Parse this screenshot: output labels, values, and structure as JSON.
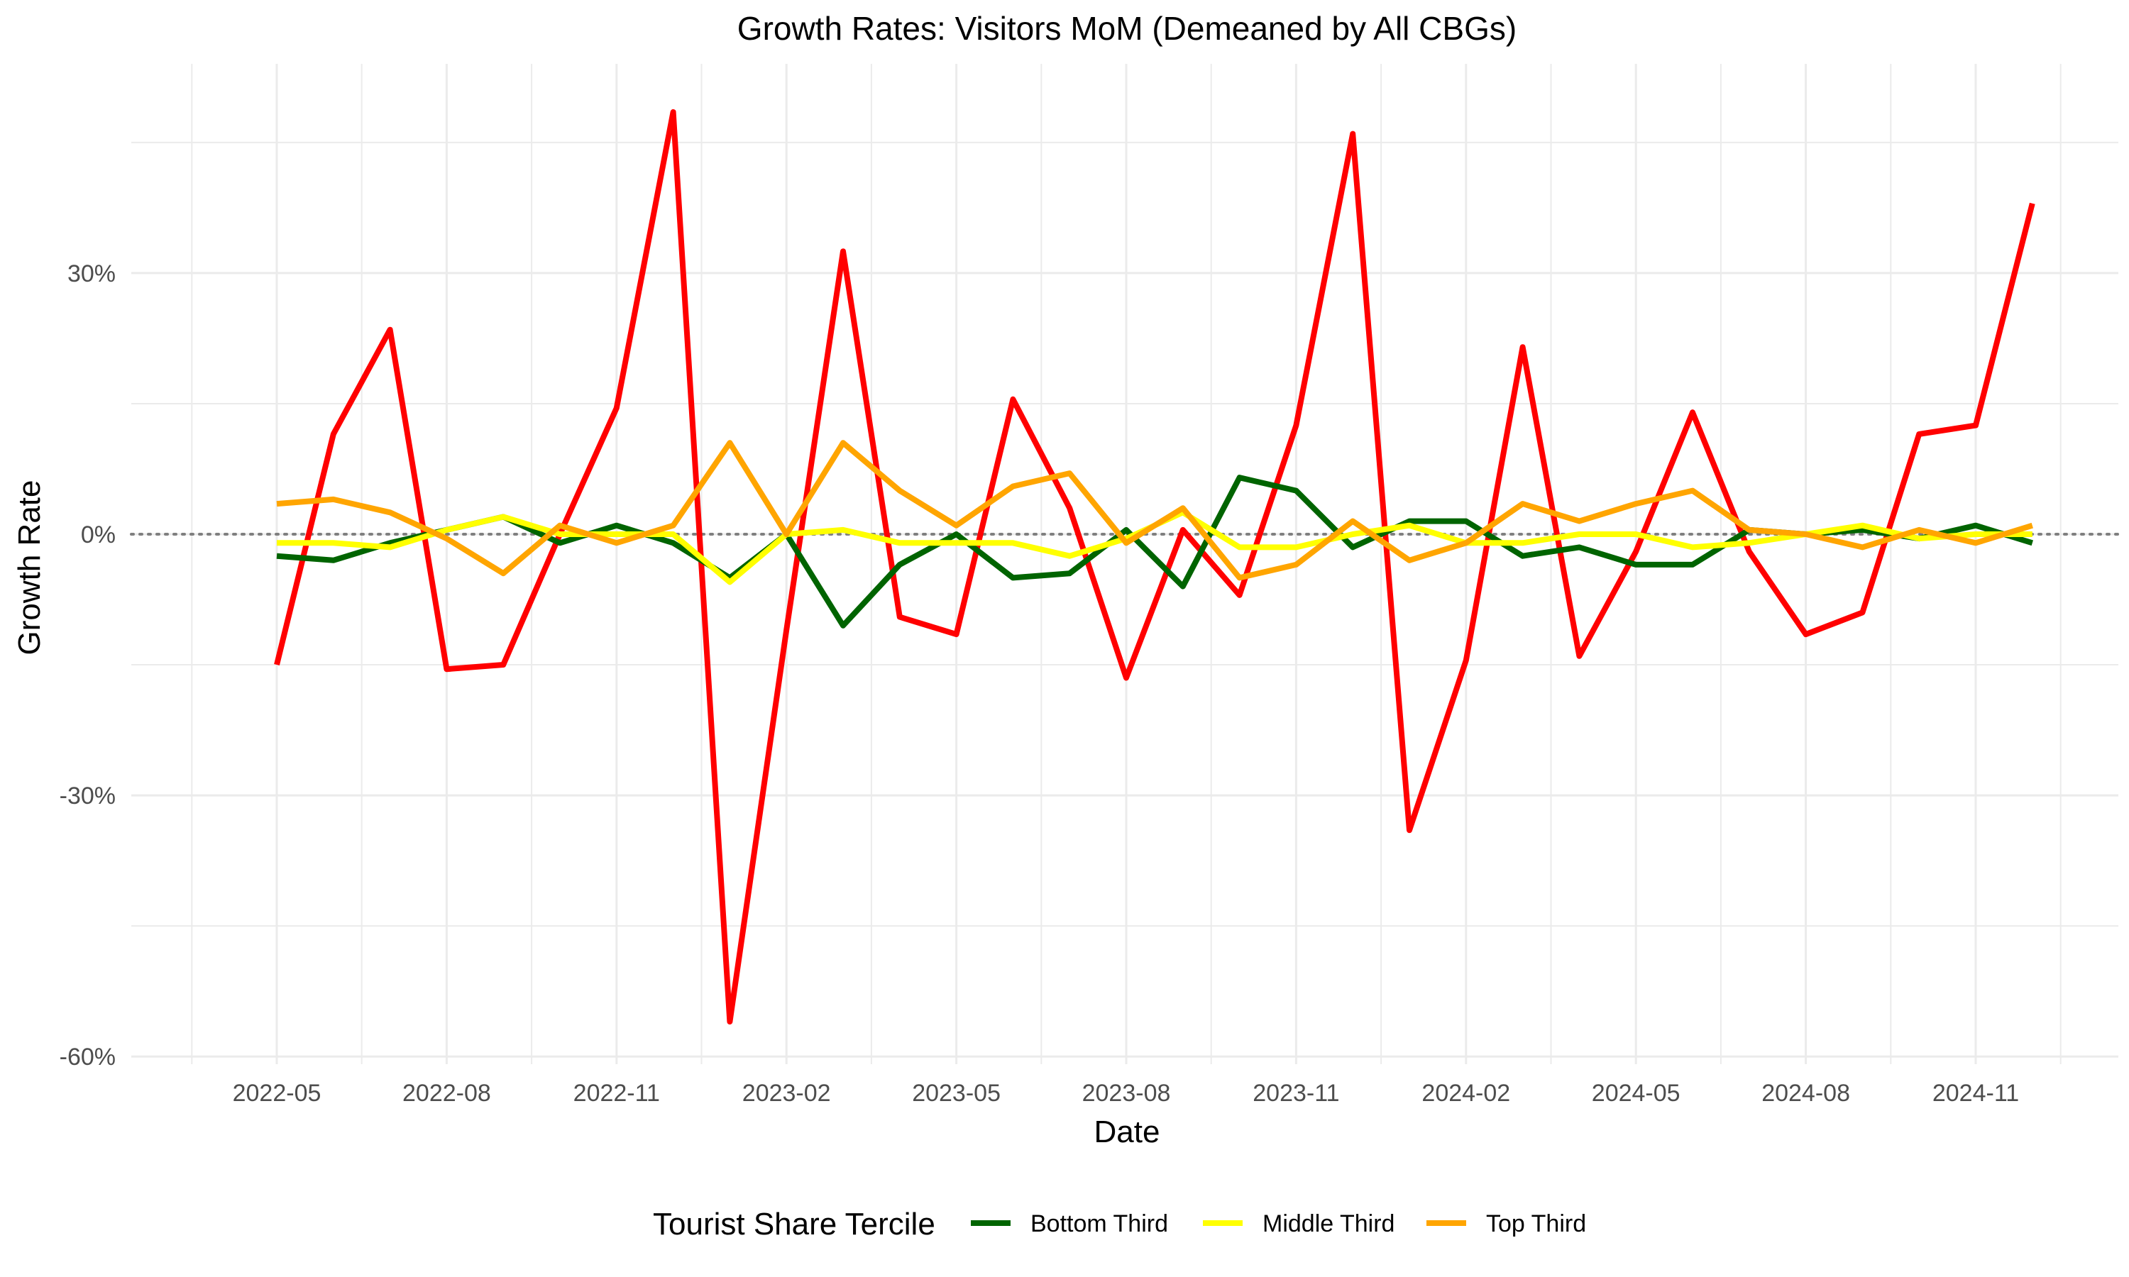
{
  "chart_data": {
    "type": "line",
    "title": "Growth Rates: Visitors MoM (Demeaned by All CBGs)",
    "xlabel": "Date",
    "ylabel": "Growth Rate",
    "x_ticks": [
      "2022-05",
      "2022-08",
      "2022-11",
      "2023-02",
      "2023-05",
      "2023-08",
      "2023-11",
      "2024-02",
      "2024-05",
      "2024-08",
      "2024-11"
    ],
    "y_ticks": [
      "-60%",
      "-30%",
      "0%",
      "30%"
    ],
    "ylim": [
      -60,
      45
    ],
    "y_unit": "%",
    "grid": true,
    "zero_reference_line": "dotted",
    "legend_title": "Tourist Share Tercile",
    "legend_position": "bottom",
    "x": [
      "2022-05",
      "2022-06",
      "2022-07",
      "2022-08",
      "2022-09",
      "2022-10",
      "2022-11",
      "2022-12",
      "2023-01",
      "2023-02",
      "2023-03",
      "2023-04",
      "2023-05",
      "2023-06",
      "2023-07",
      "2023-08",
      "2023-09",
      "2023-10",
      "2023-11",
      "2023-12",
      "2024-01",
      "2024-02",
      "2024-03",
      "2024-04",
      "2024-05",
      "2024-06",
      "2024-07",
      "2024-08",
      "2024-09",
      "2024-10",
      "2024-11",
      "2024-12"
    ],
    "series": [
      {
        "color": "#ff0000",
        "in_legend": false,
        "values": [
          -15,
          11.5,
          23.5,
          -15.5,
          -15,
          0,
          14.5,
          48.5,
          -56,
          -11,
          32.5,
          -9.5,
          -11.5,
          15.5,
          3,
          -16.5,
          0.5,
          -7,
          12.5,
          46,
          -34,
          -14.5,
          21.5,
          -14,
          -2,
          14,
          -2,
          -11.5,
          -9,
          11.5,
          12.5,
          38
        ]
      },
      {
        "name": "Bottom Third",
        "color": "#006400",
        "in_legend": true,
        "values": [
          -2.5,
          -3,
          -1,
          0.5,
          2,
          -1,
          1,
          -1,
          -5,
          0,
          -10.5,
          -3.5,
          0,
          -5,
          -4.5,
          0.5,
          -6,
          6.5,
          5,
          -1.5,
          1.5,
          1.5,
          -2.5,
          -1.5,
          -3.5,
          -3.5,
          0.5,
          0,
          0.5,
          -0.5,
          1,
          -1
        ]
      },
      {
        "name": "Middle Third",
        "color": "#ffff00",
        "in_legend": true,
        "values": [
          -1,
          -1,
          -1.5,
          0.5,
          2,
          0,
          0,
          0,
          -5.5,
          0,
          0.5,
          -1,
          -1,
          -1,
          -2.5,
          -0.5,
          2.5,
          -1.5,
          -1.5,
          0,
          1,
          -1,
          -1,
          0,
          0,
          -1.5,
          -1,
          0,
          1,
          -0.5,
          0,
          0
        ]
      },
      {
        "name": "Top Third",
        "color": "#ffa500",
        "in_legend": true,
        "values": [
          3.5,
          4,
          2.5,
          -0.5,
          -4.5,
          1,
          -1,
          1,
          10.5,
          0,
          10.5,
          5,
          1,
          5.5,
          7,
          -1,
          3,
          -5,
          -3.5,
          1.5,
          -3,
          -1,
          3.5,
          1.5,
          3.5,
          5,
          0.5,
          0,
          -1.5,
          0.5,
          -1,
          1
        ]
      }
    ]
  }
}
